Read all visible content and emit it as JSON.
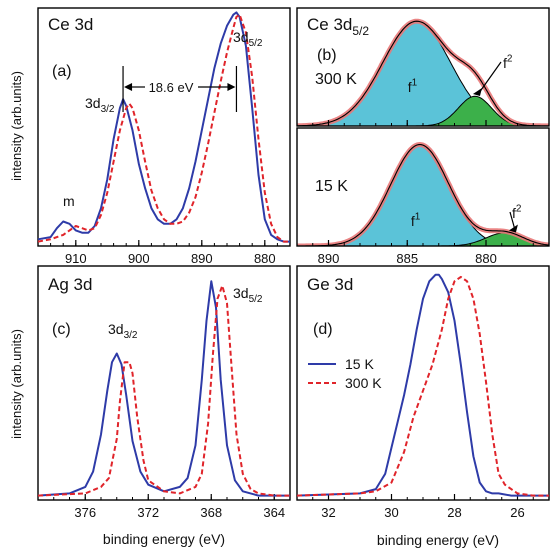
{
  "colors": {
    "s15": "#2e3ba8",
    "s300": "#e0242a",
    "f1": "#5bc3d8",
    "f2": "#3cb04a",
    "envelope": "#e87878",
    "frame": "#000000"
  },
  "ylabel_top": "intensity (arb.units)",
  "ylabel_bottom": "intensity (arb.units)",
  "xlabel_left": "binding energy (eV)",
  "xlabel_right": "binding energy (eV)",
  "chart_data": [
    {
      "id": "a",
      "type": "line",
      "title": "Ce 3d",
      "panel_label": "(a)",
      "xlim": [
        916,
        876
      ],
      "ylim": [
        0,
        1.07
      ],
      "xticks": [
        910,
        900,
        890,
        880
      ],
      "annotations": {
        "d32": "3d",
        "d32_sub": "3/2",
        "d52": "3d",
        "d52_sub": "5/2",
        "m": "m",
        "split": "18.6 eV"
      },
      "series": [
        {
          "name": "15 K",
          "style": "solid",
          "x": [
            916,
            914,
            913,
            912,
            911,
            910,
            909,
            908,
            907,
            906,
            905,
            904,
            903,
            902.5,
            902,
            901,
            900,
            899,
            898,
            897,
            896,
            895,
            894,
            893,
            892,
            891,
            890,
            889,
            888,
            887,
            886,
            885,
            884.5,
            884,
            883,
            882,
            881,
            880,
            879,
            878,
            877,
            876
          ],
          "y": [
            0.03,
            0.04,
            0.08,
            0.11,
            0.1,
            0.07,
            0.06,
            0.06,
            0.09,
            0.17,
            0.3,
            0.48,
            0.62,
            0.66,
            0.63,
            0.52,
            0.37,
            0.26,
            0.17,
            0.12,
            0.1,
            0.1,
            0.12,
            0.17,
            0.26,
            0.38,
            0.52,
            0.66,
            0.8,
            0.91,
            0.99,
            1.04,
            1.05,
            1.03,
            0.9,
            0.62,
            0.32,
            0.12,
            0.05,
            0.03,
            0.02,
            0.02
          ]
        },
        {
          "name": "300 K",
          "style": "dashed",
          "x": [
            916,
            914,
            912,
            911,
            910,
            909,
            908,
            907,
            906,
            905,
            904,
            903,
            902,
            901.5,
            901,
            900,
            899,
            898,
            897,
            896,
            895,
            894,
            893,
            892,
            891,
            890,
            889,
            888,
            887,
            886,
            885,
            884.5,
            884,
            883,
            882,
            881,
            880,
            879,
            878,
            877,
            876
          ],
          "y": [
            0.02,
            0.03,
            0.05,
            0.07,
            0.09,
            0.08,
            0.07,
            0.08,
            0.14,
            0.24,
            0.38,
            0.52,
            0.62,
            0.64,
            0.62,
            0.52,
            0.38,
            0.25,
            0.17,
            0.12,
            0.1,
            0.1,
            0.11,
            0.15,
            0.22,
            0.33,
            0.46,
            0.6,
            0.74,
            0.87,
            0.98,
            1.03,
            1.04,
            0.96,
            0.76,
            0.48,
            0.24,
            0.1,
            0.04,
            0.02,
            0.02
          ]
        }
      ]
    },
    {
      "id": "b",
      "type": "area",
      "title": "Ce 3d",
      "title_sub": "5/2",
      "panel_label": "(b)",
      "xlim": [
        892,
        876
      ],
      "xticks": [
        890,
        885,
        880
      ],
      "subpanels": [
        {
          "temp": "300 K",
          "f1_label": "f",
          "f1_sup": "1",
          "f2_label": "f",
          "f2_sup": "2",
          "f1": {
            "center": 884.4,
            "height": 0.95,
            "sigma": 2.15
          },
          "f2": {
            "center": 880.7,
            "height": 0.27,
            "sigma": 1.05
          }
        },
        {
          "temp": "15 K",
          "f1_label": "f",
          "f1_sup": "1",
          "f2_label": "f",
          "f2_sup": "2",
          "f1": {
            "center": 884.2,
            "height": 0.92,
            "sigma": 1.85
          },
          "f2": {
            "center": 878.8,
            "height": 0.12,
            "sigma": 1.2
          }
        }
      ]
    },
    {
      "id": "c",
      "type": "line",
      "title": "Ag 3d",
      "panel_label": "(c)",
      "xlim": [
        379,
        363
      ],
      "ylim": [
        0,
        1.07
      ],
      "xticks": [
        376,
        372,
        368,
        364
      ],
      "annotations": {
        "d32": "3d",
        "d32_sub": "3/2",
        "d52": "3d",
        "d52_sub": "5/2"
      },
      "series": [
        {
          "name": "15 K",
          "style": "solid",
          "x": [
            379,
            377,
            376,
            375.5,
            375,
            374.6,
            374.3,
            374,
            373.7,
            373.4,
            373,
            372.5,
            372,
            371,
            370,
            369.5,
            369,
            368.6,
            368.3,
            368,
            367.7,
            367.4,
            367,
            366.5,
            366,
            365,
            364,
            363
          ],
          "y": [
            0.02,
            0.03,
            0.06,
            0.13,
            0.3,
            0.5,
            0.63,
            0.67,
            0.62,
            0.48,
            0.27,
            0.13,
            0.07,
            0.04,
            0.06,
            0.1,
            0.25,
            0.55,
            0.82,
            1.0,
            0.88,
            0.55,
            0.25,
            0.09,
            0.04,
            0.02,
            0.02,
            0.02
          ]
        },
        {
          "name": "300 K",
          "style": "dashed",
          "x": [
            379,
            376,
            375,
            374.5,
            374,
            373.8,
            373.5,
            373.2,
            373,
            372.7,
            372.3,
            372,
            371,
            370,
            369,
            368.6,
            368.2,
            367.9,
            367.6,
            367.3,
            367,
            366.7,
            366.4,
            366,
            365.5,
            365,
            364,
            363
          ],
          "y": [
            0.02,
            0.03,
            0.06,
            0.1,
            0.28,
            0.45,
            0.63,
            0.63,
            0.58,
            0.38,
            0.18,
            0.09,
            0.04,
            0.03,
            0.06,
            0.12,
            0.35,
            0.66,
            0.92,
            0.98,
            0.9,
            0.6,
            0.3,
            0.12,
            0.05,
            0.03,
            0.02,
            0.02
          ]
        }
      ]
    },
    {
      "id": "d",
      "type": "line",
      "title": "Ge 3d",
      "panel_label": "(d)",
      "xlim": [
        33,
        25
      ],
      "ylim": [
        0,
        1.07
      ],
      "xticks": [
        32,
        30,
        28,
        26
      ],
      "legend_position": "left",
      "series": [
        {
          "name": "15 K",
          "style": "solid",
          "x": [
            33,
            31,
            30.5,
            30.2,
            30,
            29.8,
            29.6,
            29.4,
            29.2,
            29,
            28.8,
            28.6,
            28.5,
            28.4,
            28.2,
            28,
            27.8,
            27.6,
            27.4,
            27.2,
            27,
            26.8,
            26.6,
            26.2,
            26,
            25.5,
            25
          ],
          "y": [
            0.02,
            0.03,
            0.05,
            0.12,
            0.24,
            0.36,
            0.48,
            0.62,
            0.78,
            0.92,
            1.0,
            1.03,
            1.03,
            1.01,
            0.95,
            0.82,
            0.62,
            0.4,
            0.2,
            0.08,
            0.04,
            0.03,
            0.03,
            0.02,
            0.02,
            0.02,
            0.02
          ]
        },
        {
          "name": "300 K",
          "style": "dashed",
          "x": [
            33,
            31,
            30.5,
            30,
            29.6,
            29.3,
            29,
            28.7,
            28.4,
            28.2,
            28,
            27.8,
            27.6,
            27.4,
            27.2,
            27,
            26.8,
            26.6,
            26.4,
            26.2,
            26,
            25.5,
            25
          ],
          "y": [
            0.02,
            0.03,
            0.04,
            0.08,
            0.22,
            0.38,
            0.5,
            0.62,
            0.78,
            0.92,
            1.0,
            1.02,
            1.0,
            0.92,
            0.76,
            0.54,
            0.3,
            0.12,
            0.07,
            0.05,
            0.03,
            0.02,
            0.02
          ]
        }
      ]
    }
  ]
}
